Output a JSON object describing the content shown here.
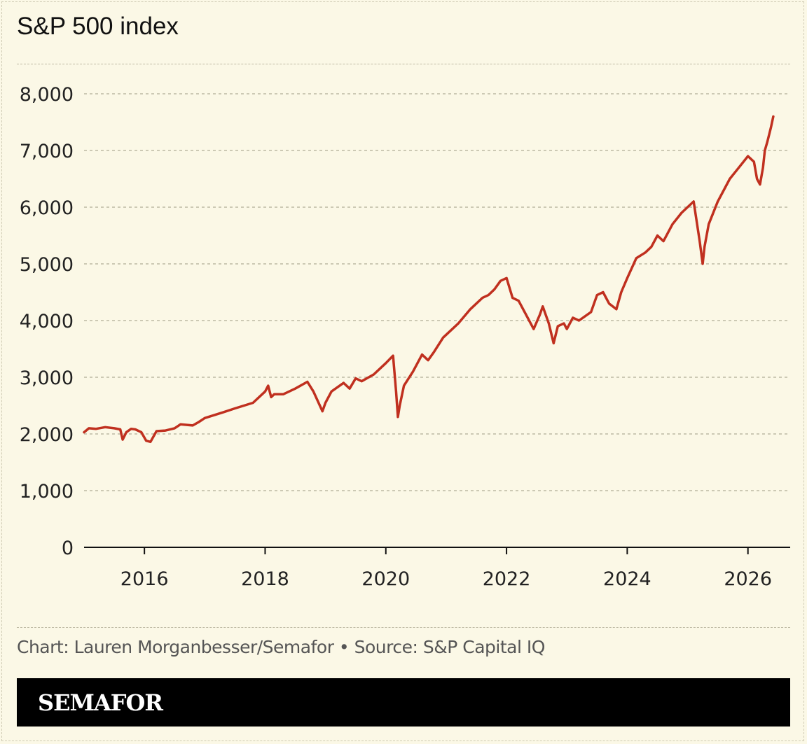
{
  "header": {
    "title": "S&P 500 index"
  },
  "footer": {
    "credit": "Chart: Lauren Morganbesser/Semafor • Source: S&P Capital IQ"
  },
  "brand": {
    "name": "SEMAFOR"
  },
  "chart_data": {
    "type": "line",
    "title": "S&P 500 index",
    "xlabel": "",
    "ylabel": "",
    "xlim": [
      2015.0,
      2026.7
    ],
    "ylim": [
      0,
      8000
    ],
    "y_ticks": [
      0,
      1000,
      2000,
      3000,
      4000,
      5000,
      6000,
      7000,
      8000
    ],
    "y_tick_labels": [
      "0",
      "1,000",
      "2,000",
      "3,000",
      "4,000",
      "5,000",
      "6,000",
      "7,000",
      "8,000"
    ],
    "x_ticks": [
      2016,
      2018,
      2020,
      2022,
      2024,
      2026
    ],
    "x_tick_labels": [
      "2016",
      "2018",
      "2020",
      "2022",
      "2024",
      "2026"
    ],
    "grid": "horizontal dashed",
    "line_color": "#c0301f",
    "series": [
      {
        "x": [
          2015.0,
          2015.08,
          2015.2,
          2015.35,
          2015.5,
          2015.6,
          2015.64,
          2015.7,
          2015.78,
          2015.85,
          2015.95,
          2016.03,
          2016.1,
          2016.2,
          2016.35,
          2016.5,
          2016.6,
          2016.8,
          2016.9,
          2017.0,
          2017.3,
          2017.5,
          2017.8,
          2018.0,
          2018.05,
          2018.1,
          2018.15,
          2018.3,
          2018.5,
          2018.7,
          2018.8,
          2018.95,
          2019.0,
          2019.1,
          2019.3,
          2019.4,
          2019.5,
          2019.6,
          2019.8,
          2020.0,
          2020.12,
          2020.17,
          2020.2,
          2020.23,
          2020.3,
          2020.45,
          2020.6,
          2020.7,
          2020.8,
          2020.95,
          2021.0,
          2021.2,
          2021.4,
          2021.6,
          2021.7,
          2021.8,
          2021.9,
          2022.0,
          2022.1,
          2022.2,
          2022.3,
          2022.45,
          2022.55,
          2022.6,
          2022.7,
          2022.78,
          2022.85,
          2022.95,
          2023.0,
          2023.1,
          2023.2,
          2023.4,
          2023.5,
          2023.6,
          2023.7,
          2023.82,
          2023.9,
          2024.0,
          2024.15,
          2024.3,
          2024.4,
          2024.5,
          2024.6,
          2024.75,
          2024.9,
          2025.0,
          2025.1,
          2025.15,
          2025.2,
          2025.25,
          2025.28,
          2025.35,
          2025.5,
          2025.7,
          2025.85,
          2026.0,
          2026.1,
          2026.15,
          2026.2,
          2026.25,
          2026.28,
          2026.32,
          2026.38,
          2026.42
        ],
        "y": [
          2030,
          2100,
          2090,
          2120,
          2100,
          2080,
          1900,
          2030,
          2090,
          2080,
          2030,
          1880,
          1860,
          2050,
          2060,
          2100,
          2170,
          2150,
          2210,
          2280,
          2380,
          2450,
          2550,
          2750,
          2850,
          2650,
          2700,
          2700,
          2800,
          2920,
          2750,
          2400,
          2550,
          2750,
          2900,
          2800,
          2980,
          2930,
          3050,
          3250,
          3380,
          2750,
          2300,
          2500,
          2850,
          3100,
          3400,
          3300,
          3450,
          3700,
          3750,
          3950,
          4200,
          4400,
          4450,
          4550,
          4700,
          4750,
          4400,
          4350,
          4150,
          3850,
          4100,
          4250,
          3950,
          3600,
          3900,
          3950,
          3850,
          4050,
          4000,
          4150,
          4450,
          4500,
          4300,
          4200,
          4500,
          4750,
          5100,
          5200,
          5300,
          5500,
          5400,
          5700,
          5900,
          6000,
          6100,
          5750,
          5400,
          5000,
          5300,
          5700,
          6100,
          6500,
          6700,
          6900,
          6800,
          6500,
          6400,
          6700,
          7000,
          7150,
          7400,
          7600
        ]
      }
    ]
  }
}
